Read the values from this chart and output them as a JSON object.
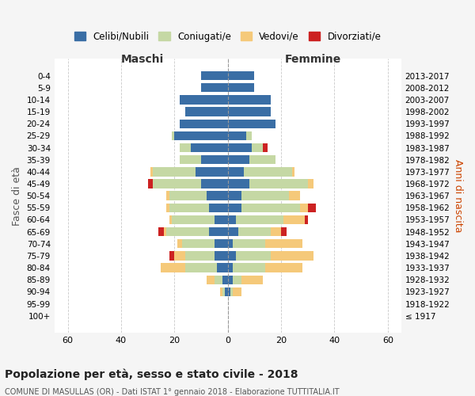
{
  "age_groups": [
    "100+",
    "95-99",
    "90-94",
    "85-89",
    "80-84",
    "75-79",
    "70-74",
    "65-69",
    "60-64",
    "55-59",
    "50-54",
    "45-49",
    "40-44",
    "35-39",
    "30-34",
    "25-29",
    "20-24",
    "15-19",
    "10-14",
    "5-9",
    "0-4"
  ],
  "birth_years": [
    "≤ 1917",
    "1918-1922",
    "1923-1927",
    "1928-1932",
    "1933-1937",
    "1938-1942",
    "1943-1947",
    "1948-1952",
    "1953-1957",
    "1958-1962",
    "1963-1967",
    "1968-1972",
    "1973-1977",
    "1978-1982",
    "1983-1987",
    "1988-1992",
    "1993-1997",
    "1998-2002",
    "2003-2007",
    "2008-2012",
    "2013-2017"
  ],
  "maschi": {
    "celibi": [
      0,
      0,
      1,
      2,
      4,
      5,
      5,
      7,
      5,
      7,
      8,
      10,
      12,
      10,
      14,
      20,
      18,
      16,
      18,
      10,
      10
    ],
    "coniugati": [
      0,
      0,
      1,
      3,
      12,
      11,
      12,
      16,
      16,
      15,
      14,
      18,
      16,
      8,
      4,
      1,
      0,
      0,
      0,
      0,
      0
    ],
    "vedovi": [
      0,
      0,
      1,
      3,
      9,
      4,
      2,
      1,
      1,
      1,
      1,
      0,
      1,
      0,
      0,
      0,
      0,
      0,
      0,
      0,
      0
    ],
    "divorziati": [
      0,
      0,
      0,
      0,
      0,
      2,
      0,
      2,
      0,
      0,
      0,
      2,
      0,
      0,
      0,
      0,
      0,
      0,
      0,
      0,
      0
    ]
  },
  "femmine": {
    "nubili": [
      0,
      0,
      1,
      2,
      2,
      3,
      2,
      4,
      3,
      5,
      5,
      8,
      6,
      8,
      9,
      7,
      18,
      16,
      16,
      10,
      10
    ],
    "coniugate": [
      0,
      0,
      1,
      3,
      12,
      13,
      12,
      12,
      18,
      22,
      18,
      22,
      18,
      10,
      4,
      2,
      0,
      0,
      0,
      0,
      0
    ],
    "vedove": [
      0,
      0,
      3,
      8,
      14,
      16,
      14,
      4,
      8,
      3,
      4,
      2,
      1,
      0,
      0,
      0,
      0,
      0,
      0,
      0,
      0
    ],
    "divorziate": [
      0,
      0,
      0,
      0,
      0,
      0,
      0,
      2,
      1,
      3,
      0,
      0,
      0,
      0,
      2,
      0,
      0,
      0,
      0,
      0,
      0
    ]
  },
  "colors": {
    "celibi": "#3a6ea5",
    "coniugati": "#c5d8a4",
    "vedovi": "#f5c97a",
    "divorziati": "#cc2222"
  },
  "xlim": 65,
  "title_main": "Popolazione per età, sesso e stato civile - 2018",
  "title_sub": "COMUNE DI MASULLAS (OR) - Dati ISTAT 1° gennaio 2018 - Elaborazione TUTTITALIA.IT",
  "ylabel_left": "Fasce di età",
  "ylabel_right": "Anni di nascita",
  "xlabel_left": "Maschi",
  "xlabel_right": "Femmine",
  "bg_color": "#f5f5f5",
  "plot_bg": "#ffffff"
}
